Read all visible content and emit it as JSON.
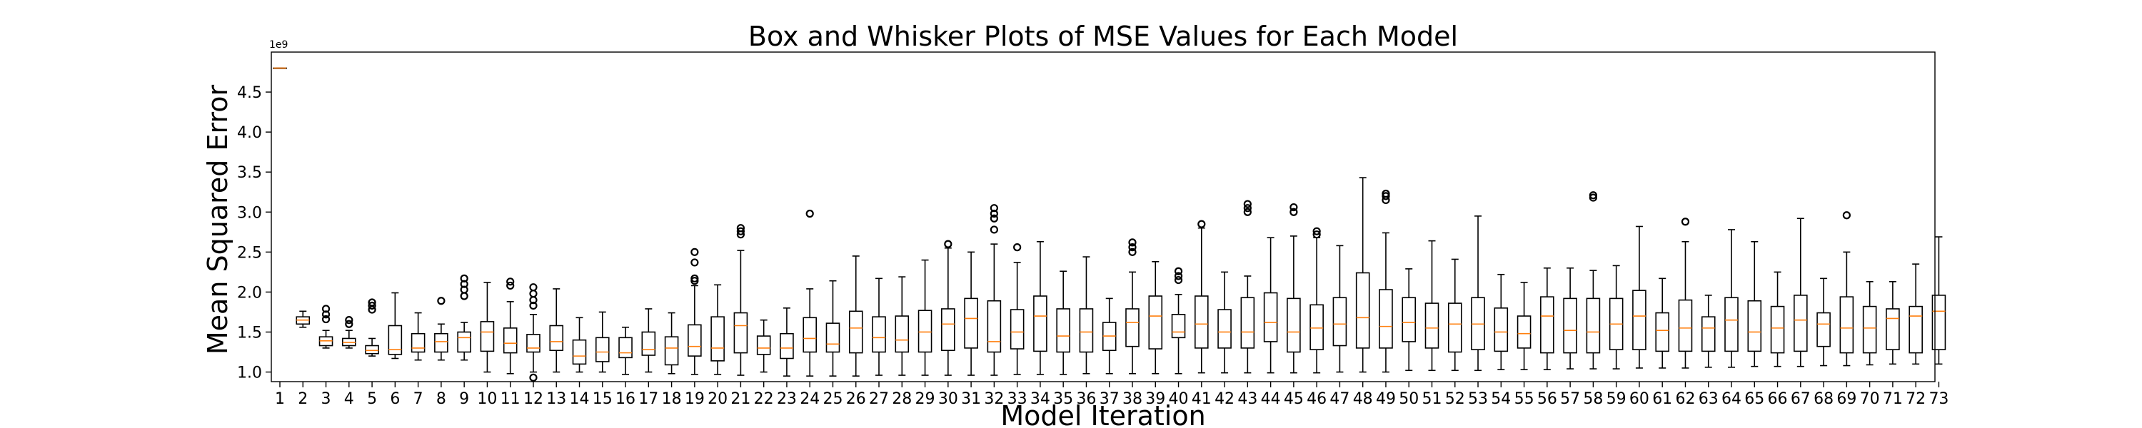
{
  "chart_data": {
    "type": "boxplot",
    "title": "Box and Whisker Plots of MSE Values for Each Model",
    "xlabel": "Model Iteration",
    "ylabel": "Mean Squared Error",
    "y_offset_label": "1e9",
    "ylim": [
      0.88,
      5.0
    ],
    "y_ticks": [
      1.0,
      1.5,
      2.0,
      2.5,
      3.0,
      3.5,
      4.0,
      4.5
    ],
    "y_tick_labels": [
      "1.0",
      "1.5",
      "2.0",
      "2.5",
      "3.0",
      "3.5",
      "4.0",
      "4.5"
    ],
    "grid": false,
    "median_color": "#ff7f0e",
    "box_color": "#000000",
    "categories": [
      "1",
      "2",
      "3",
      "4",
      "5",
      "6",
      "7",
      "8",
      "9",
      "10",
      "11",
      "12",
      "13",
      "14",
      "15",
      "16",
      "17",
      "18",
      "19",
      "20",
      "21",
      "22",
      "23",
      "24",
      "25",
      "26",
      "27",
      "28",
      "29",
      "30",
      "31",
      "32",
      "33",
      "34",
      "35",
      "36",
      "37",
      "38",
      "39",
      "40",
      "41",
      "42",
      "43",
      "44",
      "45",
      "46",
      "47",
      "48",
      "49",
      "50",
      "51",
      "52",
      "53",
      "54",
      "55",
      "56",
      "57",
      "58",
      "59",
      "60",
      "61",
      "62",
      "63",
      "64",
      "65",
      "66",
      "67",
      "68",
      "69",
      "70",
      "71",
      "72",
      "73"
    ],
    "boxes": [
      {
        "min": 4.8,
        "q1": 4.8,
        "median": 4.8,
        "q3": 4.8,
        "max": 4.8,
        "fliers": []
      },
      {
        "min": 1.56,
        "q1": 1.6,
        "median": 1.65,
        "q3": 1.69,
        "max": 1.76,
        "fliers": []
      },
      {
        "min": 1.3,
        "q1": 1.33,
        "median": 1.39,
        "q3": 1.44,
        "max": 1.52,
        "fliers": [
          1.66,
          1.72,
          1.79
        ]
      },
      {
        "min": 1.3,
        "q1": 1.33,
        "median": 1.37,
        "q3": 1.42,
        "max": 1.52,
        "fliers": [
          1.6,
          1.65
        ]
      },
      {
        "min": 1.2,
        "q1": 1.23,
        "median": 1.27,
        "q3": 1.33,
        "max": 1.42,
        "fliers": [
          1.78,
          1.83,
          1.87
        ]
      },
      {
        "min": 1.17,
        "q1": 1.22,
        "median": 1.28,
        "q3": 1.58,
        "max": 1.99,
        "fliers": []
      },
      {
        "min": 1.15,
        "q1": 1.25,
        "median": 1.3,
        "q3": 1.48,
        "max": 1.74,
        "fliers": []
      },
      {
        "min": 1.15,
        "q1": 1.25,
        "median": 1.38,
        "q3": 1.48,
        "max": 1.6,
        "fliers": [
          1.89
        ]
      },
      {
        "min": 1.15,
        "q1": 1.25,
        "median": 1.43,
        "q3": 1.5,
        "max": 1.62,
        "fliers": [
          1.95,
          2.03,
          2.1,
          2.17
        ]
      },
      {
        "min": 1.0,
        "q1": 1.26,
        "median": 1.5,
        "q3": 1.63,
        "max": 2.12,
        "fliers": []
      },
      {
        "min": 0.98,
        "q1": 1.24,
        "median": 1.36,
        "q3": 1.55,
        "max": 1.88,
        "fliers": [
          2.08,
          2.13
        ]
      },
      {
        "min": 1.0,
        "q1": 1.25,
        "median": 1.3,
        "q3": 1.47,
        "max": 1.72,
        "fliers": [
          0.93,
          1.83,
          1.9,
          1.98,
          2.06
        ]
      },
      {
        "min": 1.0,
        "q1": 1.27,
        "median": 1.38,
        "q3": 1.58,
        "max": 2.04,
        "fliers": []
      },
      {
        "min": 1.0,
        "q1": 1.1,
        "median": 1.2,
        "q3": 1.4,
        "max": 1.68,
        "fliers": []
      },
      {
        "min": 1.0,
        "q1": 1.13,
        "median": 1.25,
        "q3": 1.43,
        "max": 1.75,
        "fliers": []
      },
      {
        "min": 0.97,
        "q1": 1.18,
        "median": 1.24,
        "q3": 1.43,
        "max": 1.56,
        "fliers": []
      },
      {
        "min": 1.0,
        "q1": 1.21,
        "median": 1.28,
        "q3": 1.5,
        "max": 1.79,
        "fliers": []
      },
      {
        "min": 0.98,
        "q1": 1.09,
        "median": 1.3,
        "q3": 1.44,
        "max": 1.74,
        "fliers": []
      },
      {
        "min": 0.97,
        "q1": 1.2,
        "median": 1.32,
        "q3": 1.59,
        "max": 2.08,
        "fliers": [
          2.14,
          2.17,
          2.37,
          2.5
        ]
      },
      {
        "min": 0.97,
        "q1": 1.14,
        "median": 1.3,
        "q3": 1.69,
        "max": 2.09,
        "fliers": []
      },
      {
        "min": 0.96,
        "q1": 1.24,
        "median": 1.58,
        "q3": 1.74,
        "max": 2.52,
        "fliers": [
          2.72,
          2.76,
          2.8
        ]
      },
      {
        "min": 1.0,
        "q1": 1.22,
        "median": 1.3,
        "q3": 1.45,
        "max": 1.65,
        "fliers": []
      },
      {
        "min": 0.95,
        "q1": 1.17,
        "median": 1.3,
        "q3": 1.48,
        "max": 1.8,
        "fliers": []
      },
      {
        "min": 0.95,
        "q1": 1.25,
        "median": 1.42,
        "q3": 1.68,
        "max": 2.04,
        "fliers": [
          2.98
        ]
      },
      {
        "min": 0.95,
        "q1": 1.25,
        "median": 1.35,
        "q3": 1.61,
        "max": 2.14,
        "fliers": []
      },
      {
        "min": 0.95,
        "q1": 1.24,
        "median": 1.55,
        "q3": 1.76,
        "max": 2.45,
        "fliers": []
      },
      {
        "min": 0.96,
        "q1": 1.25,
        "median": 1.43,
        "q3": 1.69,
        "max": 2.17,
        "fliers": []
      },
      {
        "min": 0.96,
        "q1": 1.25,
        "median": 1.4,
        "q3": 1.7,
        "max": 2.19,
        "fliers": []
      },
      {
        "min": 0.96,
        "q1": 1.25,
        "median": 1.5,
        "q3": 1.77,
        "max": 2.4,
        "fliers": []
      },
      {
        "min": 0.96,
        "q1": 1.27,
        "median": 1.6,
        "q3": 1.79,
        "max": 2.55,
        "fliers": [
          2.6
        ]
      },
      {
        "min": 0.96,
        "q1": 1.3,
        "median": 1.67,
        "q3": 1.92,
        "max": 2.5,
        "fliers": []
      },
      {
        "min": 0.96,
        "q1": 1.25,
        "median": 1.38,
        "q3": 1.89,
        "max": 2.6,
        "fliers": [
          2.78,
          2.92,
          2.98,
          3.05
        ]
      },
      {
        "min": 0.97,
        "q1": 1.29,
        "median": 1.5,
        "q3": 1.78,
        "max": 2.37,
        "fliers": [
          2.56
        ]
      },
      {
        "min": 0.97,
        "q1": 1.26,
        "median": 1.7,
        "q3": 1.95,
        "max": 2.63,
        "fliers": []
      },
      {
        "min": 0.97,
        "q1": 1.25,
        "median": 1.45,
        "q3": 1.79,
        "max": 2.26,
        "fliers": []
      },
      {
        "min": 0.98,
        "q1": 1.25,
        "median": 1.5,
        "q3": 1.79,
        "max": 2.44,
        "fliers": []
      },
      {
        "min": 0.98,
        "q1": 1.27,
        "median": 1.45,
        "q3": 1.62,
        "max": 1.92,
        "fliers": []
      },
      {
        "min": 0.98,
        "q1": 1.32,
        "median": 1.62,
        "q3": 1.79,
        "max": 2.25,
        "fliers": [
          2.5,
          2.56,
          2.62
        ]
      },
      {
        "min": 0.98,
        "q1": 1.29,
        "median": 1.7,
        "q3": 1.95,
        "max": 2.38,
        "fliers": []
      },
      {
        "min": 0.98,
        "q1": 1.43,
        "median": 1.5,
        "q3": 1.72,
        "max": 1.97,
        "fliers": [
          2.15,
          2.2,
          2.26
        ]
      },
      {
        "min": 0.99,
        "q1": 1.3,
        "median": 1.6,
        "q3": 1.95,
        "max": 2.8,
        "fliers": [
          2.85
        ]
      },
      {
        "min": 0.99,
        "q1": 1.3,
        "median": 1.5,
        "q3": 1.78,
        "max": 2.25,
        "fliers": []
      },
      {
        "min": 0.99,
        "q1": 1.3,
        "median": 1.5,
        "q3": 1.93,
        "max": 2.2,
        "fliers": [
          3.0,
          3.05,
          3.1
        ]
      },
      {
        "min": 0.99,
        "q1": 1.38,
        "median": 1.62,
        "q3": 1.99,
        "max": 2.68,
        "fliers": []
      },
      {
        "min": 0.99,
        "q1": 1.25,
        "median": 1.5,
        "q3": 1.92,
        "max": 2.7,
        "fliers": [
          3.0,
          3.06
        ]
      },
      {
        "min": 0.99,
        "q1": 1.28,
        "median": 1.55,
        "q3": 1.84,
        "max": 2.68,
        "fliers": [
          2.72,
          2.76
        ]
      },
      {
        "min": 1.0,
        "q1": 1.33,
        "median": 1.6,
        "q3": 1.93,
        "max": 2.58,
        "fliers": []
      },
      {
        "min": 1.0,
        "q1": 1.3,
        "median": 1.68,
        "q3": 2.24,
        "max": 3.43,
        "fliers": []
      },
      {
        "min": 1.0,
        "q1": 1.3,
        "median": 1.57,
        "q3": 2.03,
        "max": 2.74,
        "fliers": [
          3.15,
          3.2,
          3.23
        ]
      },
      {
        "min": 1.02,
        "q1": 1.38,
        "median": 1.62,
        "q3": 1.93,
        "max": 2.29,
        "fliers": []
      },
      {
        "min": 1.02,
        "q1": 1.3,
        "median": 1.55,
        "q3": 1.86,
        "max": 2.64,
        "fliers": []
      },
      {
        "min": 1.02,
        "q1": 1.25,
        "median": 1.6,
        "q3": 1.86,
        "max": 2.41,
        "fliers": []
      },
      {
        "min": 1.02,
        "q1": 1.28,
        "median": 1.6,
        "q3": 1.93,
        "max": 2.95,
        "fliers": []
      },
      {
        "min": 1.03,
        "q1": 1.26,
        "median": 1.5,
        "q3": 1.8,
        "max": 2.22,
        "fliers": []
      },
      {
        "min": 1.03,
        "q1": 1.3,
        "median": 1.48,
        "q3": 1.7,
        "max": 2.12,
        "fliers": []
      },
      {
        "min": 1.03,
        "q1": 1.24,
        "median": 1.7,
        "q3": 1.94,
        "max": 2.3,
        "fliers": []
      },
      {
        "min": 1.04,
        "q1": 1.24,
        "median": 1.52,
        "q3": 1.92,
        "max": 2.3,
        "fliers": []
      },
      {
        "min": 1.04,
        "q1": 1.24,
        "median": 1.5,
        "q3": 1.92,
        "max": 2.27,
        "fliers": [
          3.18,
          3.21
        ]
      },
      {
        "min": 1.04,
        "q1": 1.28,
        "median": 1.6,
        "q3": 1.92,
        "max": 2.33,
        "fliers": []
      },
      {
        "min": 1.05,
        "q1": 1.28,
        "median": 1.7,
        "q3": 2.02,
        "max": 2.82,
        "fliers": []
      },
      {
        "min": 1.05,
        "q1": 1.26,
        "median": 1.52,
        "q3": 1.74,
        "max": 2.17,
        "fliers": []
      },
      {
        "min": 1.05,
        "q1": 1.26,
        "median": 1.55,
        "q3": 1.9,
        "max": 2.63,
        "fliers": [
          2.88
        ]
      },
      {
        "min": 1.06,
        "q1": 1.26,
        "median": 1.55,
        "q3": 1.69,
        "max": 1.96,
        "fliers": []
      },
      {
        "min": 1.06,
        "q1": 1.26,
        "median": 1.65,
        "q3": 1.93,
        "max": 2.78,
        "fliers": []
      },
      {
        "min": 1.07,
        "q1": 1.26,
        "median": 1.5,
        "q3": 1.89,
        "max": 2.63,
        "fliers": []
      },
      {
        "min": 1.07,
        "q1": 1.24,
        "median": 1.55,
        "q3": 1.82,
        "max": 2.25,
        "fliers": []
      },
      {
        "min": 1.07,
        "q1": 1.26,
        "median": 1.65,
        "q3": 1.96,
        "max": 2.92,
        "fliers": []
      },
      {
        "min": 1.08,
        "q1": 1.32,
        "median": 1.6,
        "q3": 1.74,
        "max": 2.17,
        "fliers": []
      },
      {
        "min": 1.08,
        "q1": 1.24,
        "median": 1.55,
        "q3": 1.94,
        "max": 2.5,
        "fliers": [
          2.96
        ]
      },
      {
        "min": 1.09,
        "q1": 1.24,
        "median": 1.55,
        "q3": 1.82,
        "max": 2.13,
        "fliers": []
      },
      {
        "min": 1.1,
        "q1": 1.28,
        "median": 1.67,
        "q3": 1.79,
        "max": 2.13,
        "fliers": []
      },
      {
        "min": 1.1,
        "q1": 1.24,
        "median": 1.7,
        "q3": 1.82,
        "max": 2.35,
        "fliers": []
      },
      {
        "min": 1.1,
        "q1": 1.28,
        "median": 1.76,
        "q3": 1.96,
        "max": 2.69,
        "fliers": []
      }
    ]
  }
}
